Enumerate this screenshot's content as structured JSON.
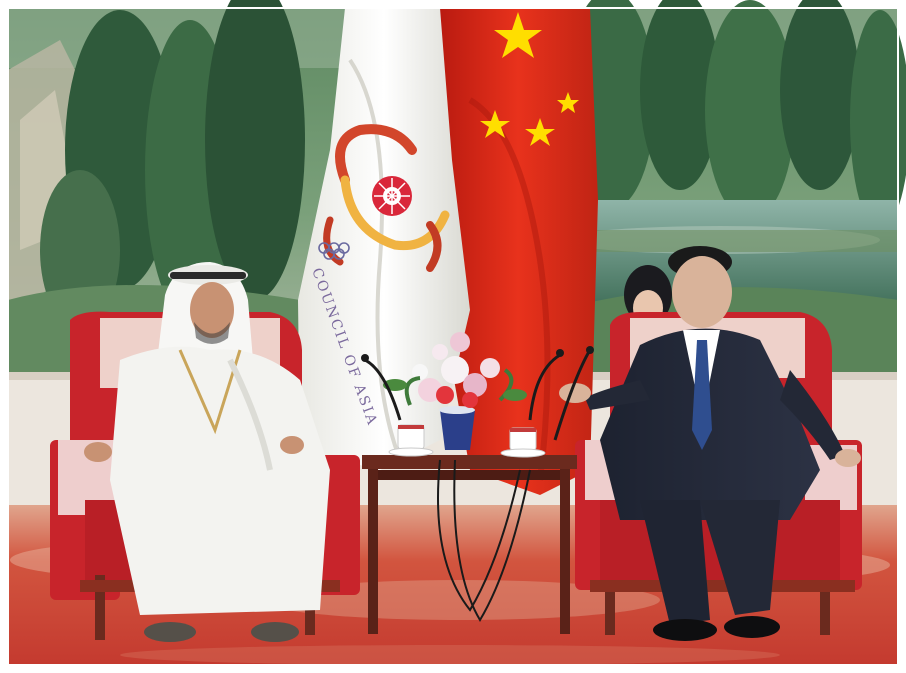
{
  "photo": {
    "flag_left_text": "COUNCIL OF ASIA",
    "colors": {
      "china_flag_red": "#de2910",
      "china_flag_star": "#ffde00",
      "chair_red": "#c8242b",
      "carpet_red": "#cc3b32",
      "table_wood": "#6b2a1e"
    }
  }
}
